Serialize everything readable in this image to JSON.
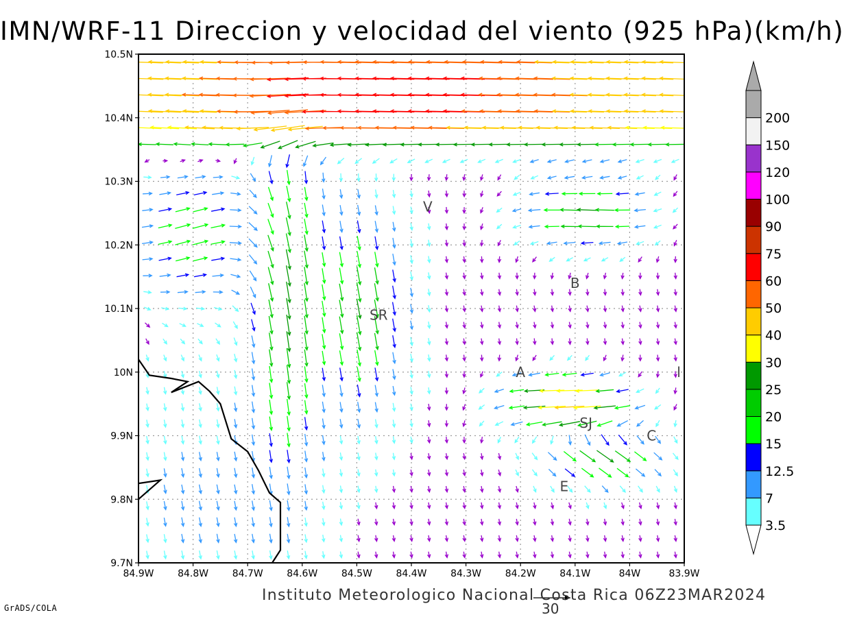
{
  "title": "IMN/WRF-11 Direccion y velocidad del viento (925 hPa)(km/h)",
  "footer": {
    "institution": "Instituto Meteorologico Nacional Costa Rica 06Z23MAR2024",
    "software": "GrADS/COLA",
    "reference_vector_value": "30"
  },
  "map": {
    "lon_range": [
      -84.9,
      -83.9
    ],
    "lat_range": [
      9.7,
      10.5
    ],
    "lon_ticks": [
      {
        "value": -84.9,
        "label": "84.9W"
      },
      {
        "value": -84.8,
        "label": "84.8W"
      },
      {
        "value": -84.7,
        "label": "84.7W"
      },
      {
        "value": -84.6,
        "label": "84.6W"
      },
      {
        "value": -84.5,
        "label": "84.5W"
      },
      {
        "value": -84.4,
        "label": "84.4W"
      },
      {
        "value": -84.3,
        "label": "84.3W"
      },
      {
        "value": -84.2,
        "label": "84.2W"
      },
      {
        "value": -84.1,
        "label": "84.1W"
      },
      {
        "value": -84.0,
        "label": "84W"
      },
      {
        "value": -83.9,
        "label": "83.9W"
      }
    ],
    "lat_ticks": [
      {
        "value": 9.7,
        "label": "9.7N"
      },
      {
        "value": 9.8,
        "label": "9.8N"
      },
      {
        "value": 9.9,
        "label": "9.9N"
      },
      {
        "value": 10.0,
        "label": "10N"
      },
      {
        "value": 10.1,
        "label": "10.1N"
      },
      {
        "value": 10.2,
        "label": "10.2N"
      },
      {
        "value": 10.3,
        "label": "10.3N"
      },
      {
        "value": 10.4,
        "label": "10.4N"
      },
      {
        "value": 10.5,
        "label": "10.5N"
      }
    ],
    "stations": [
      {
        "label": "V",
        "lon": -84.37,
        "lat": 10.26
      },
      {
        "label": "B",
        "lon": -84.1,
        "lat": 10.14
      },
      {
        "label": "SR",
        "lon": -84.46,
        "lat": 10.09
      },
      {
        "label": "A",
        "lon": -84.2,
        "lat": 10.0
      },
      {
        "label": "l",
        "lon": -83.91,
        "lat": 10.0
      },
      {
        "label": "SJ",
        "lon": -84.08,
        "lat": 9.92
      },
      {
        "label": "C",
        "lon": -83.96,
        "lat": 9.9
      },
      {
        "label": "E",
        "lon": -84.12,
        "lat": 9.82
      }
    ],
    "coastline": [
      [
        -84.9,
        10.02
      ],
      [
        -84.88,
        9.995
      ],
      [
        -84.84,
        9.99
      ],
      [
        -84.81,
        9.985
      ],
      [
        -84.84,
        9.968
      ],
      [
        -84.79,
        9.985
      ],
      [
        -84.77,
        9.97
      ],
      [
        -84.75,
        9.95
      ],
      [
        -84.73,
        9.895
      ],
      [
        -84.7,
        9.875
      ],
      [
        -84.68,
        9.845
      ],
      [
        -84.66,
        9.81
      ],
      [
        -84.64,
        9.795
      ],
      [
        -84.64,
        9.72
      ],
      [
        -84.655,
        9.7
      ]
    ],
    "island": [
      [
        -84.9,
        9.825
      ],
      [
        -84.86,
        9.83
      ],
      [
        -84.9,
        9.8
      ]
    ]
  },
  "colorbar": {
    "colors": [
      "#66ffff",
      "#3399ff",
      "#0000ff",
      "#00ff00",
      "#00cc00",
      "#009900",
      "#ffff00",
      "#ffcc00",
      "#ff6600",
      "#ff0000",
      "#cc3300",
      "#990000",
      "#ff00ff",
      "#9933cc",
      "#f2f2f2",
      "#aaaaaa"
    ],
    "labels": [
      "3.5",
      "7",
      "12.5",
      "15",
      "20",
      "25",
      "30",
      "40",
      "50",
      "60",
      "75",
      "90",
      "100",
      "120",
      "150",
      "200"
    ]
  },
  "wind_field_wind_kmh": {
    "_note": "regions",
    "regions": [
      {
        "name": "north-band",
        "lat_from": 10.36,
        "lat_to": 10.5,
        "u": -45,
        "v": 1,
        "speed_range": "30-75"
      },
      {
        "name": "central-southward-jet",
        "lon_from": -84.68,
        "lon_to": -84.42,
        "u": 0,
        "v": -20,
        "speed_range": "12.5-40"
      },
      {
        "name": "southeast-westward-flow",
        "lon_from": -84.2,
        "lon_to": -83.95,
        "lat_from": 9.83,
        "lat_to": 10.3,
        "u": -25,
        "v": 2,
        "speed_range": "15-40"
      },
      {
        "name": "southern-domain",
        "lat_from": 9.7,
        "lat_to": 9.95,
        "u": 2,
        "v": -10,
        "speed_range": "3.5-12.5"
      }
    ]
  }
}
